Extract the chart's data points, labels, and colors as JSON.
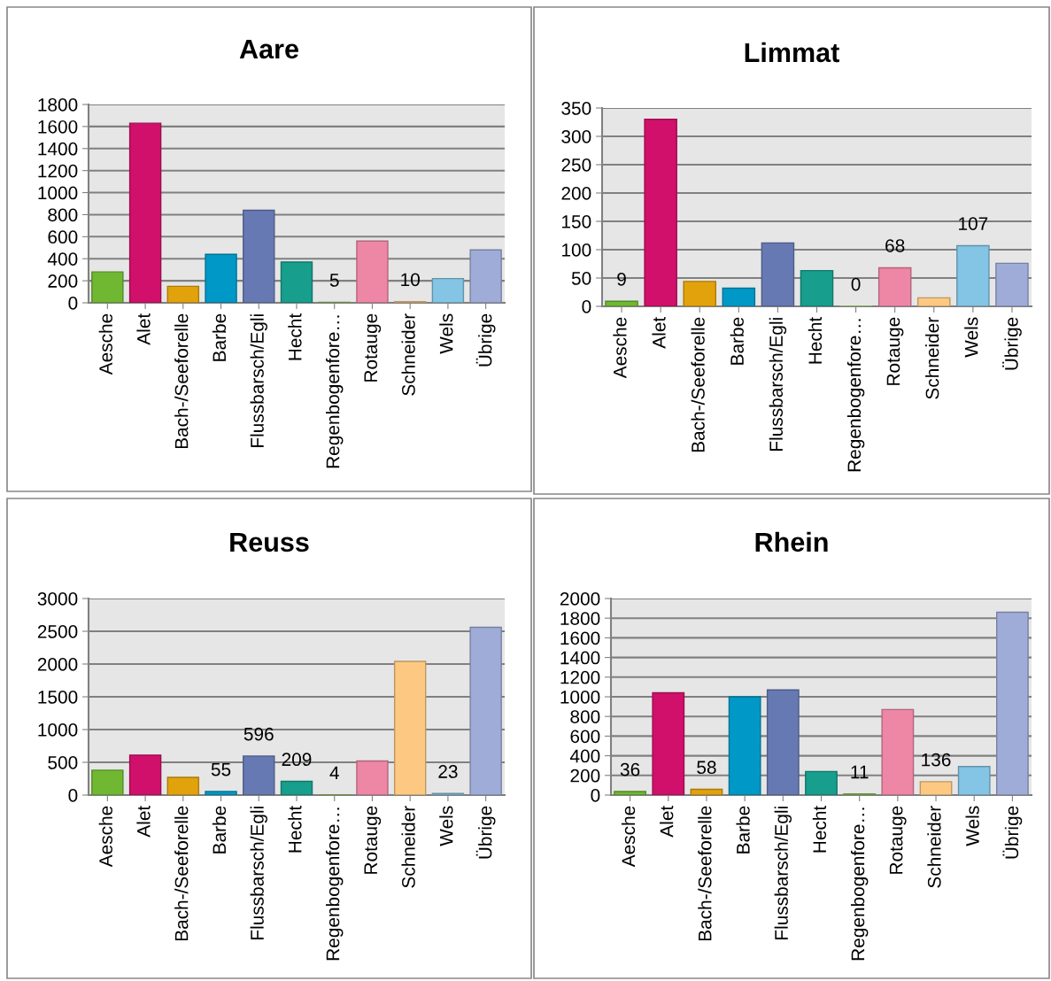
{
  "chart_data": [
    {
      "type": "bar",
      "title": "Aare",
      "categories": [
        "Aesche",
        "Alet",
        "Bach-/Seeforelle",
        "Barbe",
        "Flussbarsch/Egli",
        "Hecht",
        "Regenbogenfore…",
        "Rotauge",
        "Schneider",
        "Wels",
        "Übrige"
      ],
      "values": [
        280,
        1630,
        150,
        440,
        840,
        370,
        5,
        560,
        10,
        220,
        480
      ],
      "value_labels": [
        null,
        null,
        null,
        null,
        null,
        null,
        "5",
        null,
        "10",
        null,
        null
      ],
      "colors": [
        "#70b832",
        "#d0106a",
        "#e2a20c",
        "#0098c6",
        "#6779b3",
        "#179e8c",
        "#8cc152",
        "#ee86a6",
        "#fdc882",
        "#84c4e4",
        "#a0acd8"
      ],
      "ylim": [
        0,
        1800
      ],
      "yticks": [
        0,
        200,
        400,
        600,
        800,
        1000,
        1200,
        1400,
        1600,
        1800
      ],
      "grid": "y",
      "legend": false
    },
    {
      "type": "bar",
      "title": "Limmat",
      "categories": [
        "Aesche",
        "Alet",
        "Bach-/Seeforelle",
        "Barbe",
        "Flussbarsch/Egli",
        "Hecht",
        "Regenbogenfore…",
        "Rotauge",
        "Schneider",
        "Wels",
        "Übrige"
      ],
      "values": [
        9,
        330,
        44,
        32,
        112,
        63,
        0,
        68,
        15,
        107,
        76
      ],
      "value_labels": [
        "9",
        null,
        null,
        null,
        null,
        null,
        "0",
        "68",
        null,
        "107",
        null
      ],
      "colors": [
        "#70b832",
        "#d0106a",
        "#e2a20c",
        "#0098c6",
        "#6779b3",
        "#179e8c",
        "#8cc152",
        "#ee86a6",
        "#fdc882",
        "#84c4e4",
        "#a0acd8"
      ],
      "ylim": [
        0,
        350
      ],
      "yticks": [
        0,
        50,
        100,
        150,
        200,
        250,
        300,
        350
      ],
      "grid": "y",
      "legend": false
    },
    {
      "type": "bar",
      "title": "Reuss",
      "categories": [
        "Aesche",
        "Alet",
        "Bach-/Seeforelle",
        "Barbe",
        "Flussbarsch/Egli",
        "Hecht",
        "Regenbogenfore…",
        "Rotauge",
        "Schneider",
        "Wels",
        "Übrige"
      ],
      "values": [
        380,
        610,
        270,
        55,
        596,
        209,
        4,
        520,
        2040,
        23,
        2560
      ],
      "value_labels": [
        null,
        null,
        null,
        "55",
        "596",
        "209",
        "4",
        null,
        null,
        "23",
        null
      ],
      "colors": [
        "#70b832",
        "#d0106a",
        "#e2a20c",
        "#0098c6",
        "#6779b3",
        "#179e8c",
        "#8cc152",
        "#ee86a6",
        "#fdc882",
        "#84c4e4",
        "#a0acd8"
      ],
      "ylim": [
        0,
        3000
      ],
      "yticks": [
        0,
        500,
        1000,
        1500,
        2000,
        2500,
        3000
      ],
      "grid": "y",
      "legend": false
    },
    {
      "type": "bar",
      "title": "Rhein",
      "categories": [
        "Aesche",
        "Alet",
        "Bach-/Seeforelle",
        "Barbe",
        "Flussbarsch/Egli",
        "Hecht",
        "Regenbogenfore…",
        "Rotauge",
        "Schneider",
        "Wels",
        "Übrige"
      ],
      "values": [
        36,
        1040,
        58,
        1000,
        1070,
        240,
        11,
        870,
        136,
        290,
        1860
      ],
      "value_labels": [
        "36",
        null,
        "58",
        null,
        null,
        null,
        "11",
        null,
        "136",
        null,
        null
      ],
      "colors": [
        "#70b832",
        "#d0106a",
        "#e2a20c",
        "#0098c6",
        "#6779b3",
        "#179e8c",
        "#8cc152",
        "#ee86a6",
        "#fdc882",
        "#84c4e4",
        "#a0acd8"
      ],
      "ylim": [
        0,
        2000
      ],
      "yticks": [
        0,
        200,
        400,
        600,
        800,
        1000,
        1200,
        1400,
        1600,
        1800,
        2000
      ],
      "grid": "y",
      "legend": false
    }
  ]
}
